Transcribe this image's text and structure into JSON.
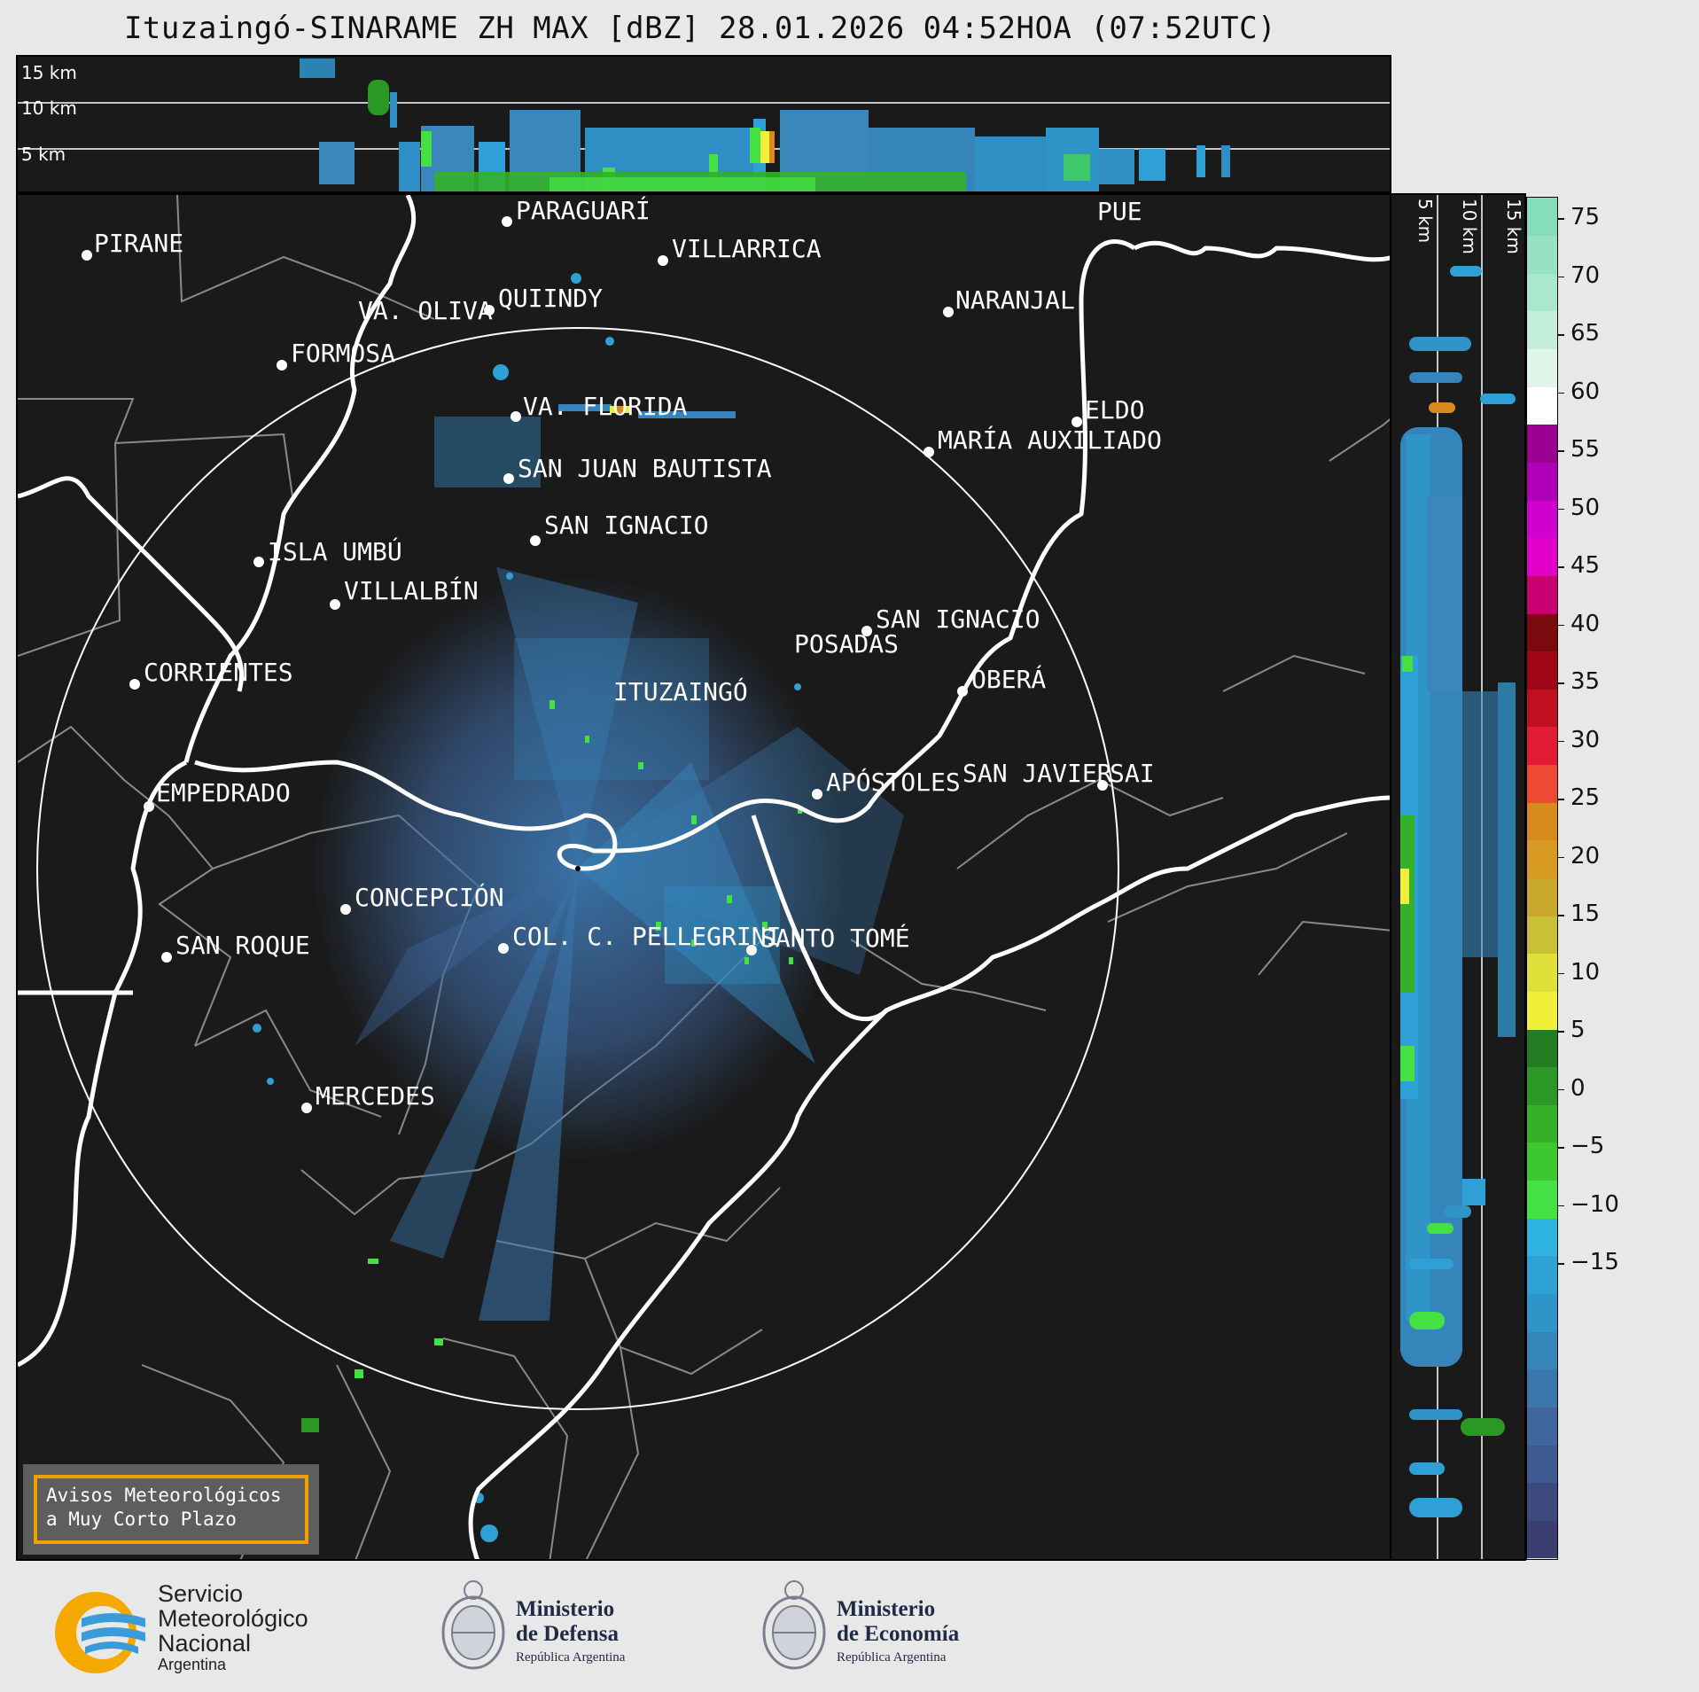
{
  "title": "Ituzaingó-SINARAME ZH MAX [dBZ] 28.01.2026 04:52HOA (07:52UTC)",
  "top_panel": {
    "height_labels": [
      "15 km",
      "10 km",
      "5 km"
    ]
  },
  "side_panel": {
    "height_labels": [
      "5 km",
      "10 km",
      "15 km"
    ]
  },
  "colorbar": {
    "ticks": [
      "75",
      "70",
      "65",
      "60",
      "55",
      "50",
      "45",
      "40",
      "35",
      "30",
      "25",
      "20",
      "15",
      "10",
      "5",
      "0",
      "−5",
      "−10",
      "−15"
    ],
    "colors": [
      "#3b3f70",
      "#3d4a80",
      "#3e5890",
      "#3f679e",
      "#3a77ad",
      "#3585bb",
      "#2f94c8",
      "#2ea3d3",
      "#2fb3e0",
      "#45e044",
      "#3cc82e",
      "#34b02a",
      "#2b9826",
      "#237c22",
      "#f0ef3a",
      "#e0e03a",
      "#c9c133",
      "#c9a82b",
      "#d99a24",
      "#d98a1d",
      "#ee4a33",
      "#e21c34",
      "#c01020",
      "#a00818",
      "#7a0a0e",
      "#c8006f",
      "#e000c8",
      "#d000d0",
      "#b000b8",
      "#9a0090",
      "#ffffff",
      "#dff5e8",
      "#c3efda",
      "#a9e8cc",
      "#96e2c2",
      "#86ddba"
    ]
  },
  "cities": [
    {
      "name": "PARAGUARÍ"
    },
    {
      "name": "VILLARRICA"
    },
    {
      "name": "PIRANE"
    },
    {
      "name": "QUIINDY"
    },
    {
      "name": "VA. OLIVA"
    },
    {
      "name": "FORMOSA"
    },
    {
      "name": "NARANJAL"
    },
    {
      "name": "PUE"
    },
    {
      "name": "VA. FLORIDA"
    },
    {
      "name": "ELDO"
    },
    {
      "name": "MARÍA AUXILIADO"
    },
    {
      "name": "SAN JUAN BAUTISTA"
    },
    {
      "name": "SAN IGNACIO"
    },
    {
      "name": "ISLA UMBÚ"
    },
    {
      "name": "VILLALBÍN"
    },
    {
      "name": "SAN IGNACIO"
    },
    {
      "name": "POSADAS"
    },
    {
      "name": "CORRIENTES"
    },
    {
      "name": "OBERÁ"
    },
    {
      "name": "ITUZAINGÓ"
    },
    {
      "name": "APÓSTOLES"
    },
    {
      "name": "SAN JAVIER"
    },
    {
      "name": "SAI"
    },
    {
      "name": "EMPEDRADO"
    },
    {
      "name": "CONCEPCIÓN"
    },
    {
      "name": "COL. C. PELLEGRINI"
    },
    {
      "name": "SANTO TOMÉ"
    },
    {
      "name": "SAN ROQUE"
    },
    {
      "name": "MERCEDES"
    }
  ],
  "warning": {
    "line1": "Avisos Meteorológicos",
    "line2": "a Muy Corto Plazo"
  },
  "footer": {
    "smn": {
      "line1": "Servicio",
      "line2": "Meteorológico",
      "line3": "Nacional",
      "line4": "Argentina"
    },
    "defensa": {
      "line1": "Ministerio",
      "line2": "de Defensa",
      "line3": "República Argentina"
    },
    "economia": {
      "line1": "Ministerio",
      "line2": "de Economía",
      "line3": "República Argentina"
    }
  }
}
